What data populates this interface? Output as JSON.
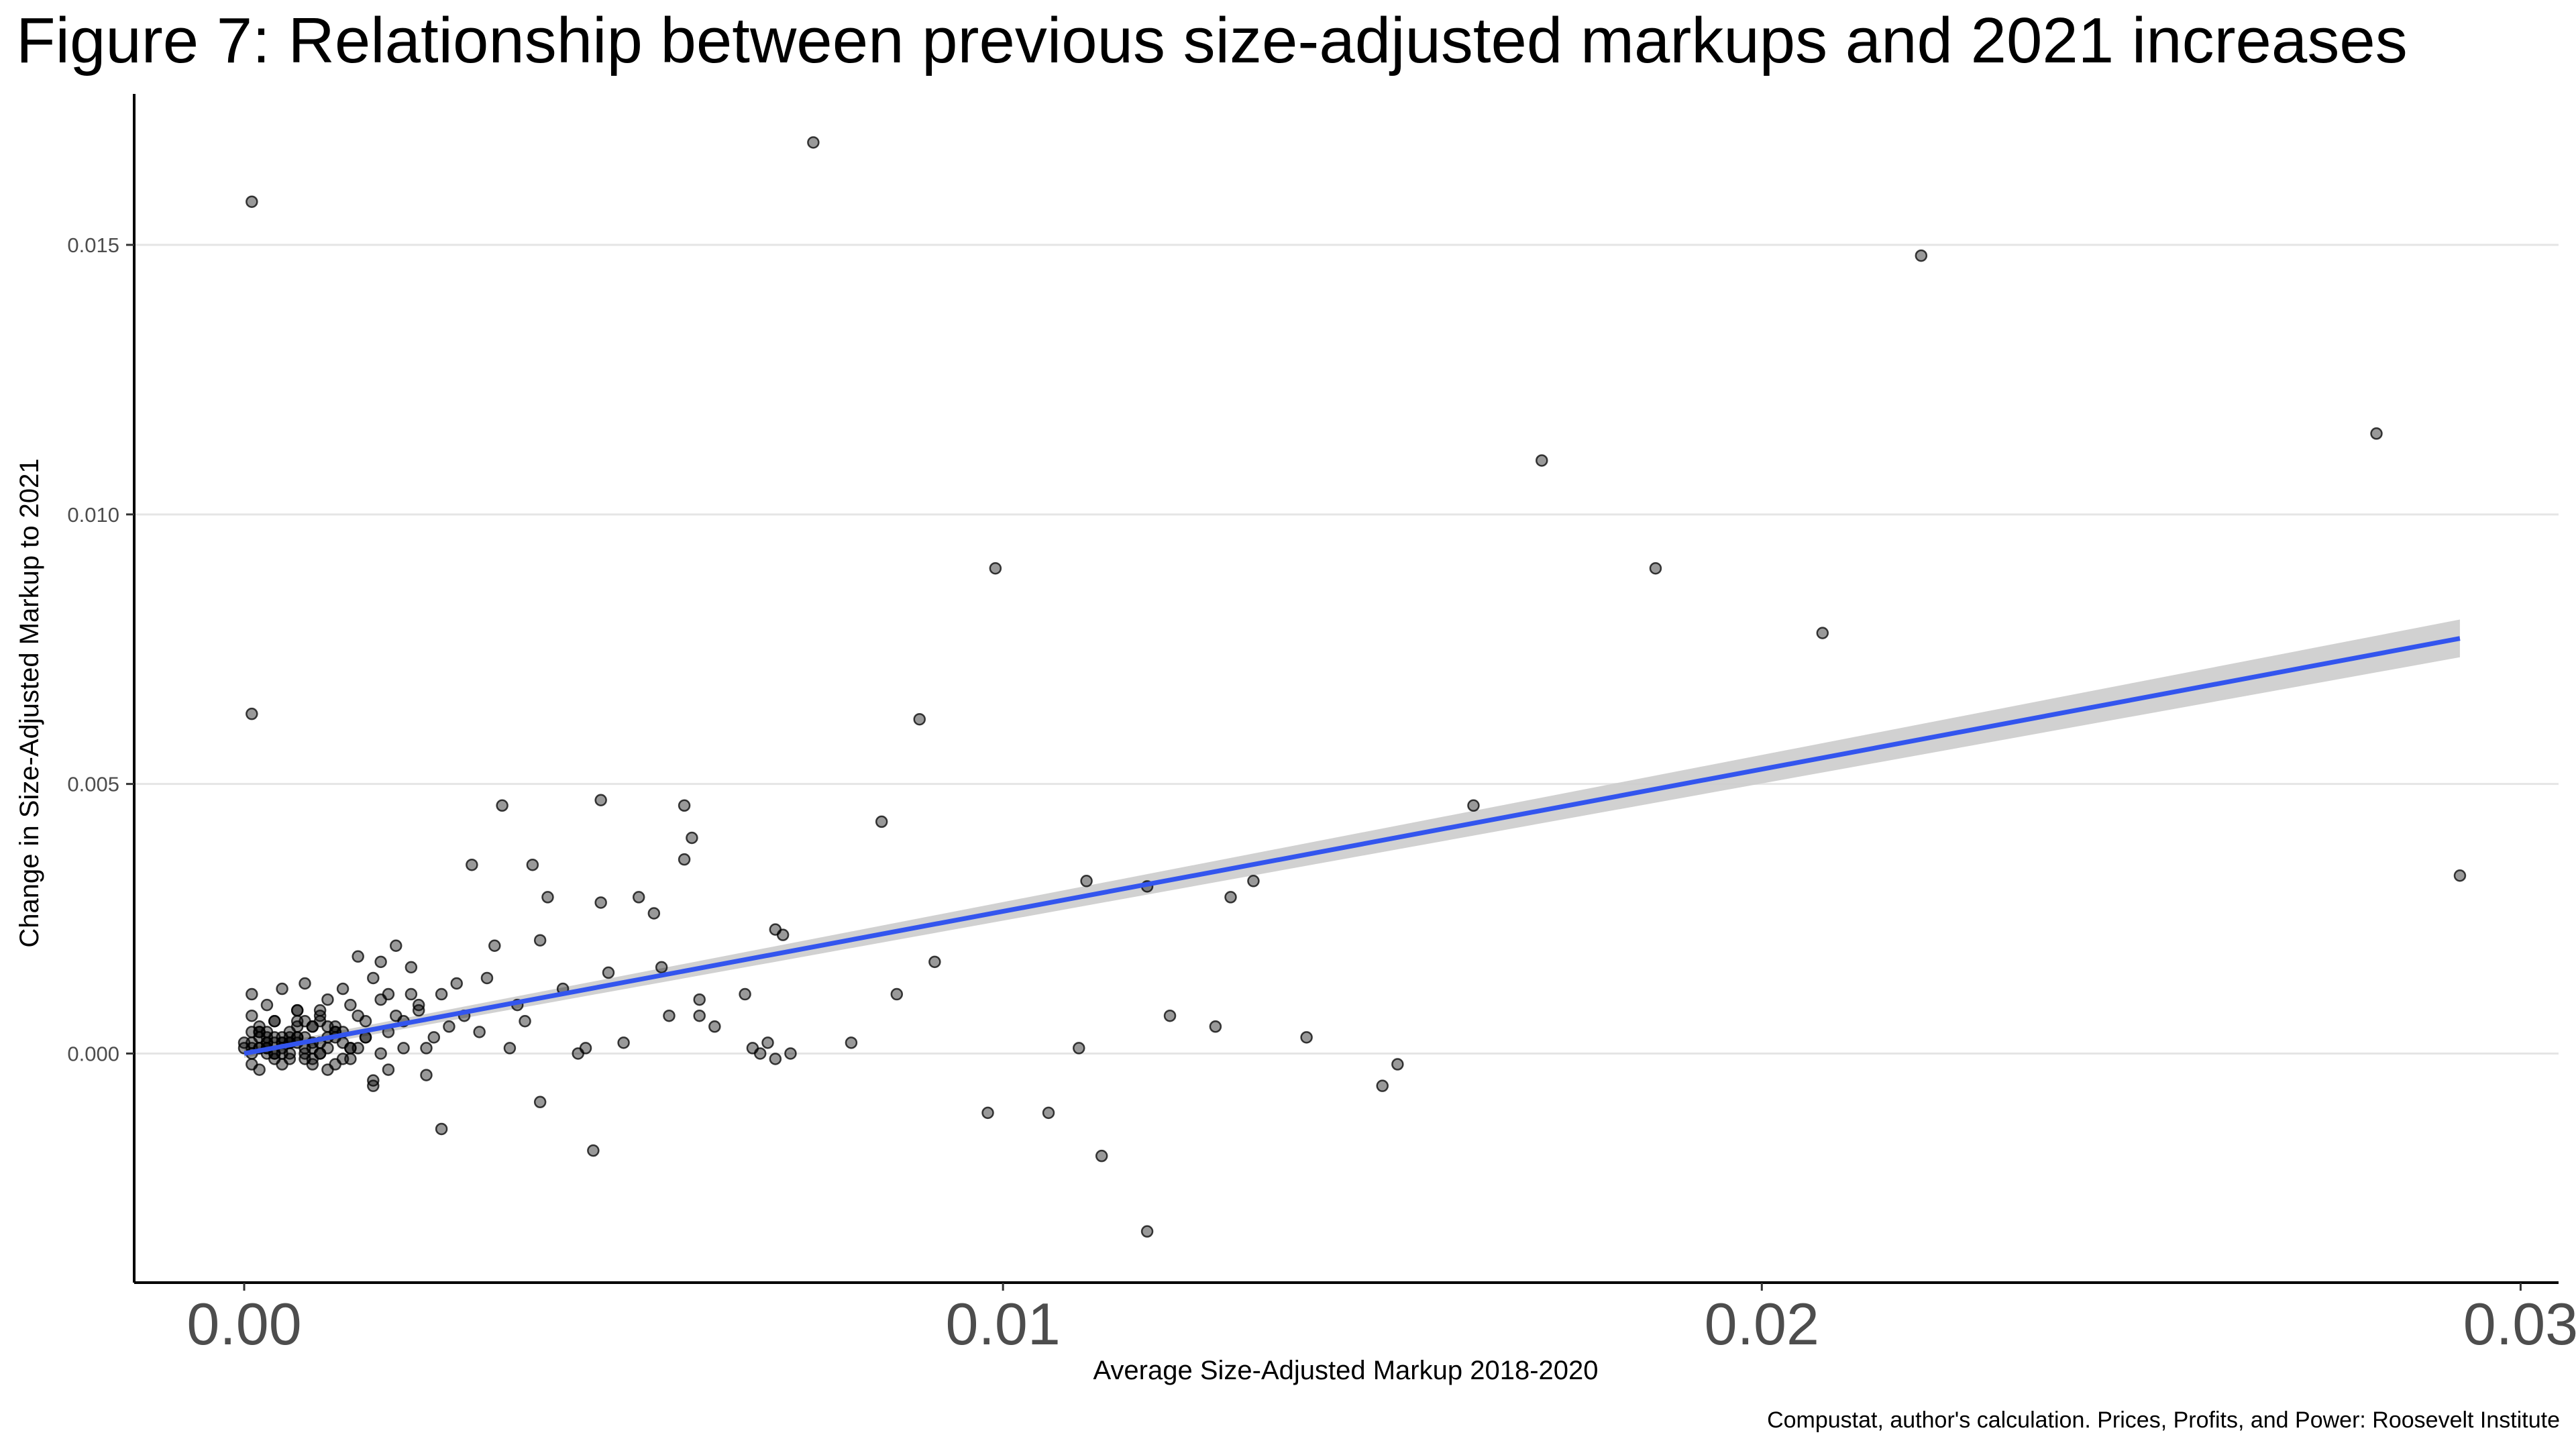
{
  "title": "Figure 7: Relationship between previous size-adjusted markups and 2021 increases",
  "caption": "Compustat, author's calculation. Prices, Profits, and Power: Roosevelt Institute",
  "colors": {
    "points": "#000000",
    "fit_line": "#3355ee",
    "ci_band": "#cccccc",
    "grid": "#e5e5e5",
    "axis": "#000000"
  },
  "chart_data": {
    "type": "scatter",
    "title": "Figure 7: Relationship between previous size-adjusted markups and 2021 increases",
    "xlabel": "Average Size-Adjusted Markup 2018-2020",
    "ylabel": "Change in Size-Adjusted Markup to 2021",
    "xlim": [
      -0.00145,
      0.0305
    ],
    "ylim": [
      -0.00425,
      0.0178
    ],
    "x_ticks": [
      0.0,
      0.01,
      0.02,
      0.03
    ],
    "x_tick_labels": [
      "0.00",
      "0.01",
      "0.02",
      "0.03"
    ],
    "y_ticks": [
      0.0,
      0.005,
      0.01,
      0.015
    ],
    "y_tick_labels": [
      "0.000",
      "0.005",
      "0.010",
      "0.015"
    ],
    "grid": "horizontal major",
    "fit": {
      "method": "linear",
      "x": [
        0.0,
        0.0292
      ],
      "y": [
        0.0,
        0.0077
      ],
      "ci_halfwidth": [
        8e-05,
        0.00035
      ]
    },
    "points": {
      "x": [
        0.0001,
        0.0001,
        0.0075,
        0.0221,
        0.0281,
        0.0171,
        0.0186,
        0.0208,
        0.0099,
        0.0089,
        0.0292,
        0.0162,
        0.0047,
        0.0058,
        0.0034,
        0.0084,
        0.0059,
        0.0058,
        0.0111,
        0.0119,
        0.0133,
        0.013,
        0.0091,
        0.0086,
        0.0122,
        0.0128,
        0.014,
        0.008,
        0.011,
        0.0098,
        0.0106,
        0.0113,
        0.0119,
        0.015,
        0.0152,
        0.007,
        0.0071,
        0.0066,
        0.0067,
        0.0068,
        0.0062,
        0.006,
        0.006,
        0.0069,
        0.0072,
        0.007,
        0.0054,
        0.0055,
        0.0052,
        0.0056,
        0.005,
        0.0048,
        0.0047,
        0.0045,
        0.0044,
        0.0046,
        0.004,
        0.0042,
        0.0038,
        0.0039,
        0.0036,
        0.0037,
        0.0035,
        0.0033,
        0.0032,
        0.003,
        0.0031,
        0.0028,
        0.0029,
        0.0026,
        0.0027,
        0.0025,
        0.0024,
        0.0022,
        0.0023,
        0.0021,
        0.002,
        0.0019,
        0.0018,
        0.0017,
        0.0016,
        0.0015,
        0.0014,
        0.0013,
        0.0012,
        0.0011,
        0.001,
        0.0009,
        0.0008,
        0.0007,
        0.0006,
        0.0005,
        0.0004,
        0.0003,
        0.0002,
        0.0001,
        0.0,
        0.0026,
        0.0039,
        0.0017,
        0.0016,
        0.001,
        0.0012,
        0.0008,
        0.0019,
        0.0022,
        0.0024,
        0.0013,
        0.0015,
        0.0021,
        0.0011,
        0.0009,
        0.0014,
        0.0018,
        0.0007,
        0.0005,
        0.0004,
        0.0006,
        0.0003,
        0.0002,
        0.0001,
        0.0005,
        0.0008,
        0.001,
        0.0012,
        0.0003,
        0.0006,
        0.0009,
        0.0011,
        0.0014,
        0.0002,
        0.0004,
        0.0007,
        0.0013,
        0.0001,
        0.0003,
        0.0006,
        0.0008,
        0.0015,
        0.0017,
        0.002,
        0.0005,
        0.001,
        0.0002,
        0.0004,
        0.0007,
        0.0009,
        0.0012,
        0.0016,
        0.0018,
        0.0001,
        0.0003,
        0.0006,
        0.0011,
        0.0013,
        0.0,
        0.0002,
        0.0004,
        0.0005,
        0.0007,
        0.0009,
        0.0001,
        0.0003,
        0.0006,
        0.0008,
        0.001,
        0.0012,
        0.0002,
        0.0004,
        0.0005,
        0.0007,
        0.0001,
        0.0003,
        0.0006,
        0.0008,
        0.0002,
        0.0004,
        0.0005,
        0.0009,
        0.0011,
        0.0001,
        0.0003,
        0.0007,
        0.001,
        0.0014,
        0.0019,
        0.0023
      ],
      "y": [
        0.0158,
        0.0063,
        0.0169,
        0.0148,
        0.0115,
        0.011,
        0.009,
        0.0078,
        0.009,
        0.0062,
        0.0033,
        0.0046,
        0.0047,
        0.0046,
        0.0046,
        0.0043,
        0.004,
        0.0036,
        0.0032,
        0.0031,
        0.0032,
        0.0029,
        0.0017,
        0.0011,
        0.0007,
        0.0005,
        0.0003,
        0.0002,
        0.0001,
        -0.0011,
        -0.0011,
        -0.0019,
        -0.0033,
        -0.0006,
        -0.0002,
        0.0023,
        0.0022,
        0.0011,
        0.0001,
        0.0,
        0.0005,
        0.0007,
        0.001,
        0.0002,
        0.0,
        -0.0001,
        0.0026,
        0.0016,
        0.0029,
        0.0007,
        0.0002,
        0.0015,
        0.0028,
        0.0001,
        0.0,
        -0.0018,
        0.0029,
        0.0012,
        0.0035,
        0.0021,
        0.0009,
        0.0006,
        0.0001,
        0.002,
        0.0014,
        0.0035,
        0.0004,
        0.0013,
        0.0007,
        0.0011,
        0.0005,
        0.0003,
        0.0001,
        0.0016,
        0.0009,
        0.0006,
        0.002,
        0.0011,
        0.0017,
        0.0014,
        0.0006,
        0.0018,
        0.0009,
        0.0012,
        0.0004,
        0.001,
        0.0007,
        0.0005,
        0.0003,
        0.0008,
        0.0004,
        0.0012,
        0.0006,
        0.0002,
        0.0005,
        0.0011,
        0.0001,
        -0.0014,
        -0.0009,
        -0.0006,
        0.0003,
        0.0008,
        -0.0002,
        0.0013,
        0.0004,
        0.0011,
        -0.0004,
        0.0002,
        0.0007,
        0.0001,
        -0.0003,
        0.0005,
        -0.0001,
        0.001,
        0.0003,
        -0.0002,
        0.0006,
        0.0002,
        0.0004,
        -0.0003,
        0.0007,
        0.0001,
        -0.0001,
        0.0006,
        0.0003,
        0.0009,
        0.0002,
        -0.0002,
        0.0005,
        0.0001,
        0.0003,
        0.0,
        0.0006,
        -0.0001,
        0.0004,
        0.0002,
        0.0,
        0.0006,
        0.0001,
        -0.0005,
        0.0007,
        0.0003,
        0.0,
        0.0004,
        0.0002,
        0.0008,
        -0.0001,
        0.0005,
        0.0003,
        0.0,
        0.0002,
        0.0003,
        -0.0001,
        0.0001,
        0.0004,
        0.0002,
        0.0001,
        0.0003,
        0.0,
        0.0005,
        0.0002,
        -0.0002,
        0.0001,
        0.0003,
        0.0,
        0.0002,
        0.0004,
        0.0001,
        -0.0001,
        0.0002,
        0.0003,
        0.0001,
        0.0,
        0.0002,
        0.0001,
        0.0004,
        0.0,
        0.0002,
        0.0001,
        0.0003,
        0.0,
        0.0001,
        0.0002,
        0.0,
        0.0001,
        -0.0003,
        0.0008
      ]
    }
  }
}
